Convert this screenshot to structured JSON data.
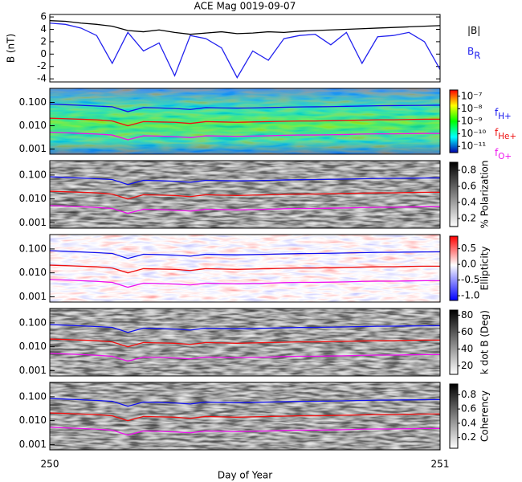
{
  "chart_data": [
    {
      "type": "line",
      "title": "ACE Mag 0019-09-07",
      "ylabel": "B (nT)",
      "x": [
        250.0,
        250.04,
        250.08,
        250.12,
        250.16,
        250.2,
        250.24,
        250.28,
        250.32,
        250.36,
        250.4,
        250.44,
        250.48,
        250.52,
        250.56,
        250.6,
        250.64,
        250.68,
        250.72,
        250.76,
        250.8,
        250.84,
        250.88,
        250.92,
        250.96,
        251.0
      ],
      "xlim": [
        250,
        251
      ],
      "ylim": [
        -4.5,
        6.4
      ],
      "yticks": [
        -4,
        -2,
        0,
        2,
        4,
        6
      ],
      "series": [
        {
          "name": "|B|",
          "color": "#000000",
          "values": [
            5.4,
            5.3,
            5.0,
            4.8,
            4.5,
            3.8,
            3.6,
            3.9,
            3.5,
            3.2,
            3.4,
            3.6,
            3.3,
            3.4,
            3.6,
            3.5,
            3.7,
            3.8,
            3.9,
            4.0,
            4.1,
            4.2,
            4.3,
            4.4,
            4.5,
            4.6
          ]
        },
        {
          "name": "B",
          "subscript": "R",
          "color": "#2222ee",
          "values": [
            5.0,
            4.8,
            4.2,
            3.0,
            -1.5,
            3.5,
            0.5,
            1.8,
            -3.5,
            3.0,
            2.5,
            1.0,
            -3.8,
            0.5,
            -1.0,
            2.5,
            3.0,
            3.2,
            1.5,
            3.5,
            -1.5,
            2.8,
            3.0,
            3.5,
            2.0,
            -2.5
          ]
        }
      ]
    },
    {
      "type": "spectrogram",
      "colormap": "jet",
      "log_y": true,
      "ylim": [
        0.0006,
        0.4
      ],
      "yticks": [
        {
          "value": 0.1,
          "label": "0.100"
        },
        {
          "value": 0.01,
          "label": "0.010"
        },
        {
          "value": 0.001,
          "label": "0.001"
        }
      ],
      "colorbar": {
        "lim": [
          -11.5,
          -6.5
        ],
        "ticks": [
          {
            "value": -7,
            "label": "10⁻⁷"
          },
          {
            "value": -8,
            "label": "10⁻⁸"
          },
          {
            "value": -9,
            "label": "10⁻⁹"
          },
          {
            "value": -10,
            "label": "10⁻¹⁰"
          },
          {
            "value": -11,
            "label": "10⁻¹¹"
          }
        ]
      },
      "series": [
        {
          "name": "f",
          "subscript": "H+",
          "color": "#1010ee",
          "values": [
            0.085,
            0.08,
            0.075,
            0.07,
            0.065,
            0.04,
            0.06,
            0.058,
            0.055,
            0.05,
            0.06,
            0.058,
            0.057,
            0.058,
            0.06,
            0.062,
            0.064,
            0.065,
            0.066,
            0.068,
            0.07,
            0.072,
            0.073,
            0.074,
            0.075,
            0.076
          ]
        },
        {
          "name": "f",
          "subscript": "He+",
          "color": "#ee1010",
          "values": [
            0.021,
            0.02,
            0.019,
            0.018,
            0.016,
            0.01,
            0.015,
            0.0145,
            0.014,
            0.0125,
            0.015,
            0.0145,
            0.014,
            0.0145,
            0.015,
            0.0155,
            0.016,
            0.016,
            0.0165,
            0.017,
            0.0175,
            0.018,
            0.018,
            0.0185,
            0.019,
            0.019
          ]
        },
        {
          "name": "f",
          "subscript": "O+",
          "color": "#ee10ee",
          "values": [
            0.0053,
            0.005,
            0.0047,
            0.0044,
            0.004,
            0.0025,
            0.0037,
            0.0036,
            0.0034,
            0.0031,
            0.0037,
            0.0036,
            0.0035,
            0.0036,
            0.0037,
            0.0039,
            0.004,
            0.004,
            0.0041,
            0.0042,
            0.0044,
            0.0045,
            0.0045,
            0.0046,
            0.0047,
            0.0047
          ]
        }
      ]
    },
    {
      "type": "spectrogram",
      "colormap": "gray",
      "log_y": true,
      "ylim": [
        0.0006,
        0.4
      ],
      "yticks": [
        {
          "value": 0.1,
          "label": "0.100"
        },
        {
          "value": 0.01,
          "label": "0.010"
        },
        {
          "value": 0.001,
          "label": "0.001"
        }
      ],
      "colorbar": {
        "label": "% Polarization",
        "lim": [
          0.1,
          0.9
        ],
        "ticks": [
          0.2,
          0.4,
          0.6,
          0.8
        ]
      }
    },
    {
      "type": "spectrogram",
      "colormap": "redblue",
      "log_y": true,
      "ylim": [
        0.0006,
        0.4
      ],
      "yticks": [
        {
          "value": 0.1,
          "label": "0.100"
        },
        {
          "value": 0.01,
          "label": "0.010"
        },
        {
          "value": 0.001,
          "label": "0.001"
        }
      ],
      "colorbar": {
        "label": "Ellipticity",
        "lim": [
          -1.15,
          0.9
        ],
        "ticks": [
          0.5,
          {
            "value": 0,
            "label": "0.0"
          },
          -0.5,
          {
            "value": -1,
            "label": "-1.0"
          }
        ]
      }
    },
    {
      "type": "spectrogram",
      "colormap": "gray",
      "log_y": true,
      "ylim": [
        0.0006,
        0.4
      ],
      "yticks": [
        {
          "value": 0.1,
          "label": "0.100"
        },
        {
          "value": 0.01,
          "label": "0.010"
        },
        {
          "value": 0.001,
          "label": "0.001"
        }
      ],
      "colorbar": {
        "label": "k dot B (Deg)",
        "lim": [
          10,
          86
        ],
        "ticks": [
          20,
          40,
          60,
          80
        ]
      }
    },
    {
      "type": "spectrogram",
      "colormap": "gray",
      "log_y": true,
      "ylim": [
        0.0006,
        0.4
      ],
      "yticks": [
        {
          "value": 0.1,
          "label": "0.100"
        },
        {
          "value": 0.01,
          "label": "0.010"
        },
        {
          "value": 0.001,
          "label": "0.001"
        }
      ],
      "colorbar": {
        "label": "Coherency",
        "lim": [
          0.05,
          0.95
        ],
        "ticks": [
          0.2,
          0.4,
          0.6,
          0.8
        ]
      },
      "xlabel": "Day of Year",
      "xticks": [
        250,
        251
      ]
    }
  ]
}
